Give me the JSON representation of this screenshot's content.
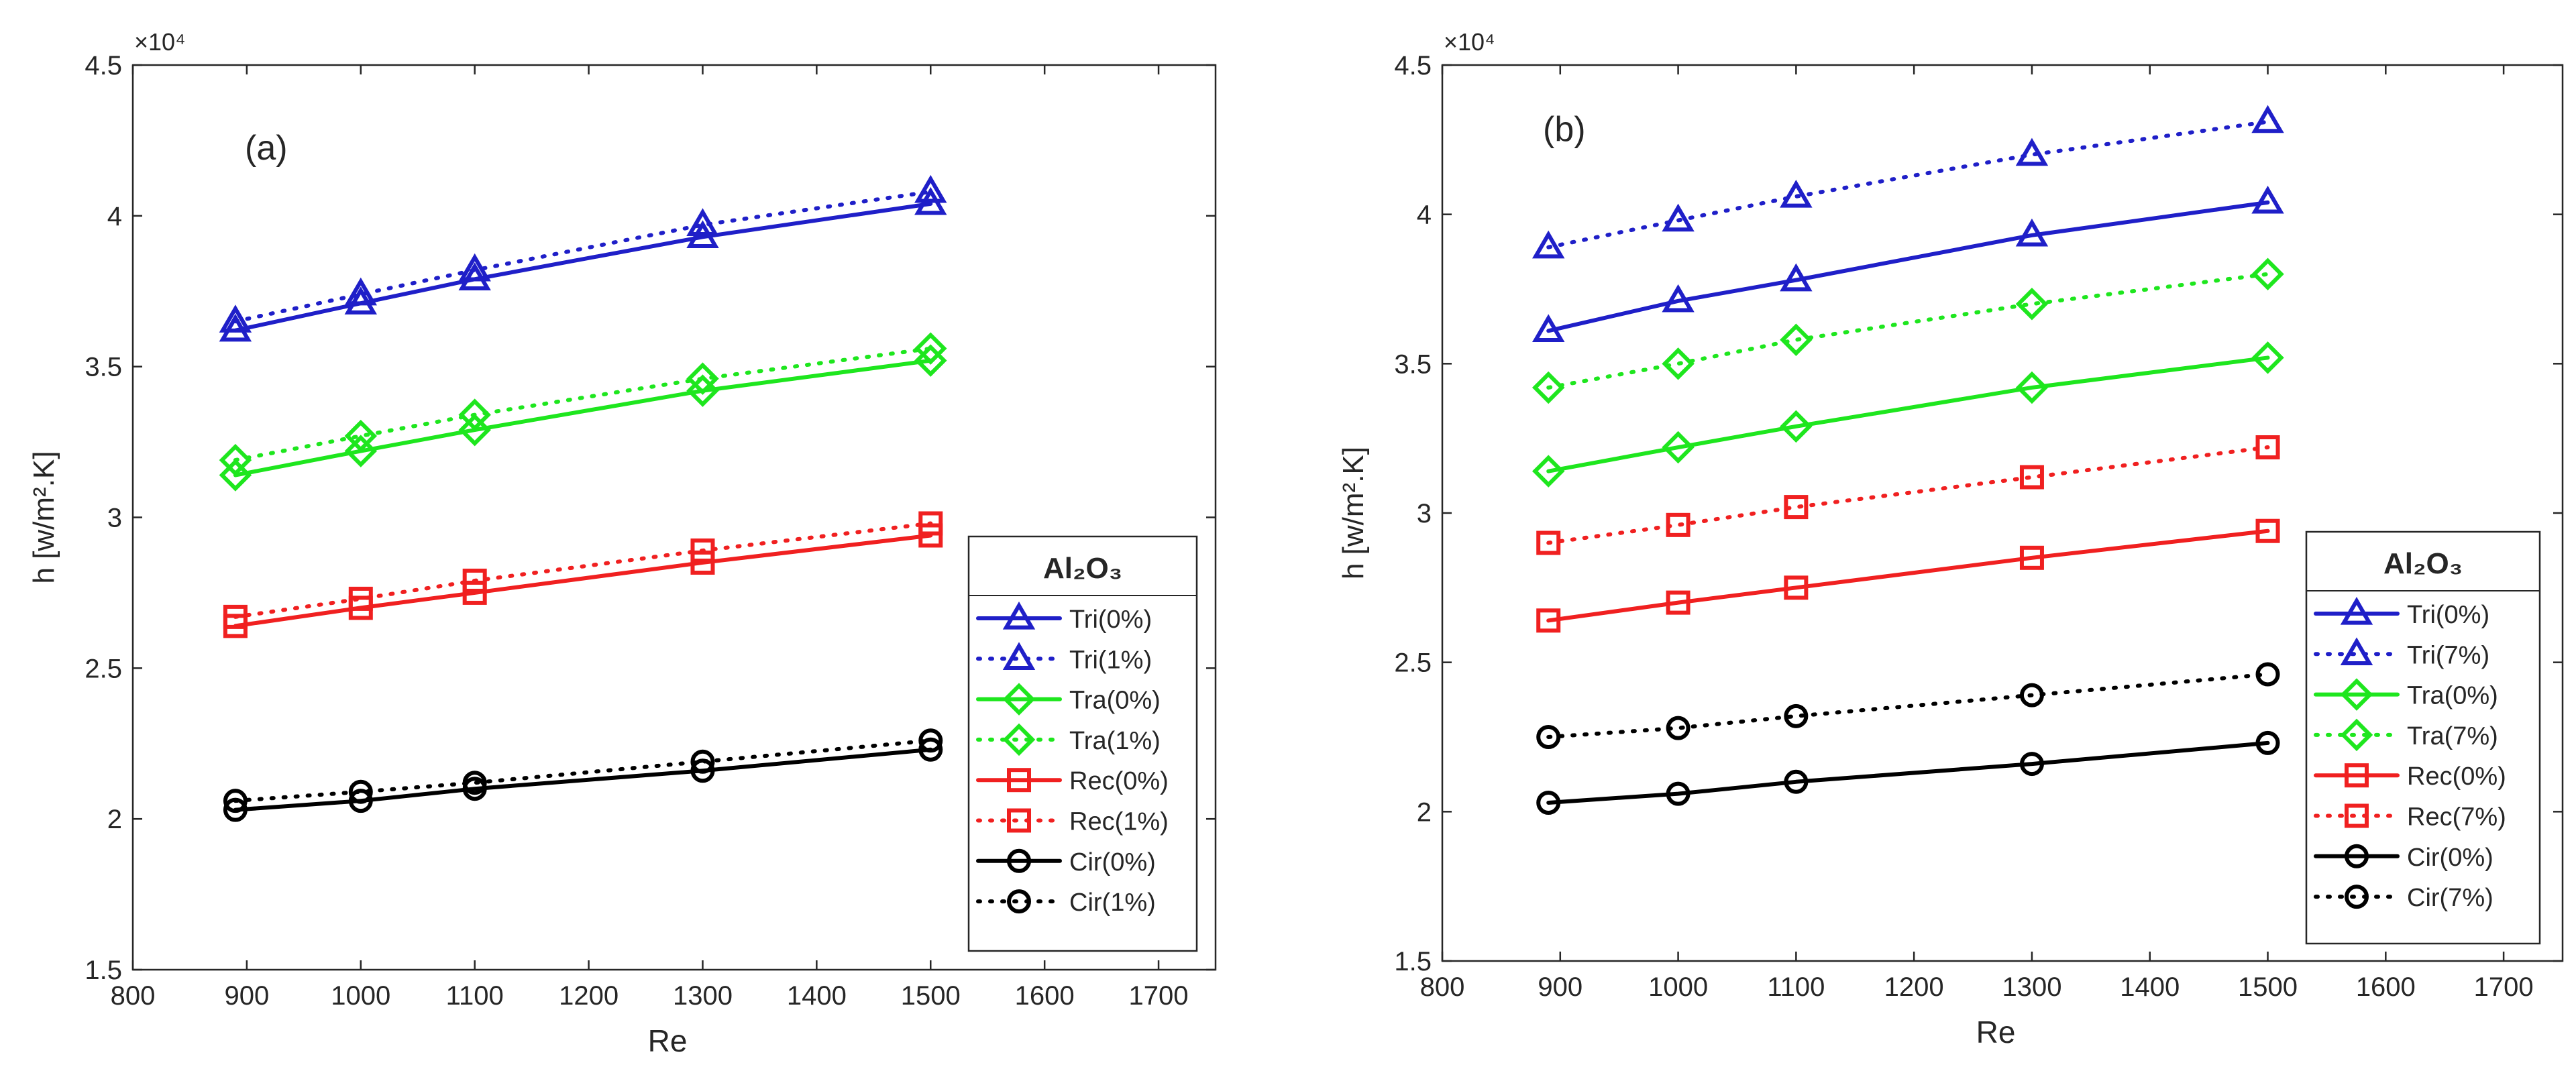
{
  "chart_data": [
    {
      "type": "line",
      "panel_label": "(a)",
      "xlabel": "Re",
      "ylabel": "h [w/m².K]",
      "y_multiplier": "×10⁴",
      "xlim": [
        800,
        1750
      ],
      "ylim": [
        15000,
        45000
      ],
      "xticks": [
        800,
        900,
        1000,
        1100,
        1200,
        1300,
        1400,
        1500,
        1600,
        1700
      ],
      "yticks": [
        15000,
        20000,
        25000,
        30000,
        35000,
        40000,
        45000
      ],
      "ytick_labels": [
        "1.5",
        "2",
        "2.5",
        "3",
        "3.5",
        "4",
        "4.5"
      ],
      "legend_title": "Al₂O₃",
      "legend_position": "bottom-right",
      "x": [
        890,
        1000,
        1100,
        1300,
        1500
      ],
      "series": [
        {
          "name": "Tri(0%)",
          "color": "#1f1fc8",
          "dash": "solid",
          "marker": "triangle",
          "values": [
            36200,
            37100,
            37900,
            39300,
            40400
          ]
        },
        {
          "name": "Tri(1%)",
          "color": "#1f1fc8",
          "dash": "dotted",
          "marker": "triangle",
          "values": [
            36500,
            37400,
            38200,
            39700,
            40800
          ]
        },
        {
          "name": "Tra(0%)",
          "color": "#1ee61e",
          "dash": "solid",
          "marker": "diamond",
          "values": [
            31400,
            32200,
            32900,
            34200,
            35200
          ]
        },
        {
          "name": "Tra(1%)",
          "color": "#1ee61e",
          "dash": "dotted",
          "marker": "diamond",
          "values": [
            31900,
            32700,
            33400,
            34600,
            35600
          ]
        },
        {
          "name": "Rec(0%)",
          "color": "#f02020",
          "dash": "solid",
          "marker": "square",
          "values": [
            26400,
            27000,
            27500,
            28500,
            29400
          ]
        },
        {
          "name": "Rec(1%)",
          "color": "#f02020",
          "dash": "dotted",
          "marker": "square",
          "values": [
            26700,
            27300,
            27900,
            28900,
            29800
          ]
        },
        {
          "name": "Cir(0%)",
          "color": "#000000",
          "dash": "solid",
          "marker": "circle",
          "values": [
            20300,
            20600,
            21000,
            21600,
            22300
          ]
        },
        {
          "name": "Cir(1%)",
          "color": "#000000",
          "dash": "dotted",
          "marker": "circle",
          "values": [
            20600,
            20900,
            21200,
            21900,
            22600
          ]
        }
      ]
    },
    {
      "type": "line",
      "panel_label": "(b)",
      "xlabel": "Re",
      "ylabel": "h [w/m².K]",
      "y_multiplier": "×10⁴",
      "xlim": [
        800,
        1750
      ],
      "ylim": [
        15000,
        45000
      ],
      "xticks": [
        800,
        900,
        1000,
        1100,
        1200,
        1300,
        1400,
        1500,
        1600,
        1700
      ],
      "yticks": [
        15000,
        20000,
        25000,
        30000,
        35000,
        40000,
        45000
      ],
      "ytick_labels": [
        "1.5",
        "2",
        "2.5",
        "3",
        "3.5",
        "4",
        "4.5"
      ],
      "legend_title": "Al₂O₃",
      "legend_position": "bottom-right",
      "x": [
        890,
        1000,
        1100,
        1300,
        1500
      ],
      "series": [
        {
          "name": "Tri(0%)",
          "color": "#1f1fc8",
          "dash": "solid",
          "marker": "triangle",
          "values": [
            36100,
            37100,
            37800,
            39300,
            40400
          ]
        },
        {
          "name": "Tri(7%)",
          "color": "#1f1fc8",
          "dash": "dotted",
          "marker": "triangle",
          "values": [
            38900,
            39800,
            40600,
            42000,
            43100
          ]
        },
        {
          "name": "Tra(0%)",
          "color": "#1ee61e",
          "dash": "solid",
          "marker": "diamond",
          "values": [
            31400,
            32200,
            32900,
            34200,
            35200
          ]
        },
        {
          "name": "Tra(7%)",
          "color": "#1ee61e",
          "dash": "dotted",
          "marker": "diamond",
          "values": [
            34200,
            35000,
            35800,
            37000,
            38000
          ]
        },
        {
          "name": "Rec(0%)",
          "color": "#f02020",
          "dash": "solid",
          "marker": "square",
          "values": [
            26400,
            27000,
            27500,
            28500,
            29400
          ]
        },
        {
          "name": "Rec(7%)",
          "color": "#f02020",
          "dash": "dotted",
          "marker": "square",
          "values": [
            29000,
            29600,
            30200,
            31200,
            32200
          ]
        },
        {
          "name": "Cir(0%)",
          "color": "#000000",
          "dash": "solid",
          "marker": "circle",
          "values": [
            20300,
            20600,
            21000,
            21600,
            22300
          ]
        },
        {
          "name": "Cir(7%)",
          "color": "#000000",
          "dash": "dotted",
          "marker": "circle",
          "values": [
            22500,
            22800,
            23200,
            23900,
            24600
          ]
        }
      ]
    }
  ]
}
